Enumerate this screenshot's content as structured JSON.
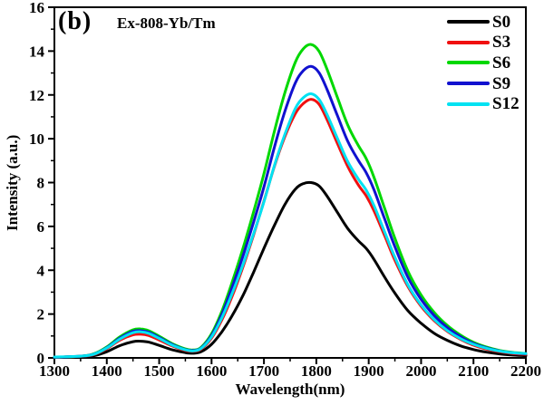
{
  "figure": {
    "panel_label": "(b)",
    "annotation": "Ex-808-Yb/Tm",
    "background": "#ffffff",
    "frame_color": "#000000"
  },
  "chart_data": {
    "type": "line",
    "title": "",
    "xlabel": "Wavelength(nm)",
    "ylabel": "Intensity (a.u.)",
    "xlim": [
      1300,
      2200
    ],
    "ylim": [
      0,
      16
    ],
    "x_major_ticks": [
      1300,
      1400,
      1500,
      1600,
      1700,
      1800,
      1900,
      2000,
      2100,
      2200
    ],
    "x_minor_tick_step": 50,
    "y_major_ticks": [
      0,
      2,
      4,
      6,
      8,
      10,
      12,
      14,
      16
    ],
    "y_minor_tick_step": 1,
    "grid": false,
    "legend_position": "top-right-inside",
    "x": [
      1300,
      1350,
      1375,
      1400,
      1425,
      1450,
      1465,
      1480,
      1500,
      1525,
      1550,
      1565,
      1580,
      1600,
      1620,
      1640,
      1660,
      1680,
      1700,
      1720,
      1740,
      1760,
      1775,
      1790,
      1805,
      1820,
      1840,
      1860,
      1880,
      1895,
      1910,
      1930,
      1950,
      1975,
      2000,
      2025,
      2050,
      2075,
      2100,
      2125,
      2150,
      2175,
      2200
    ],
    "series": [
      {
        "name": "S0",
        "color": "#000000",
        "values": [
          0.03,
          0.05,
          0.1,
          0.28,
          0.56,
          0.74,
          0.76,
          0.72,
          0.57,
          0.37,
          0.24,
          0.21,
          0.28,
          0.62,
          1.2,
          1.95,
          2.85,
          3.9,
          5.0,
          6.05,
          7.0,
          7.7,
          7.95,
          8.0,
          7.85,
          7.4,
          6.65,
          5.9,
          5.35,
          5.0,
          4.5,
          3.7,
          2.95,
          2.15,
          1.58,
          1.12,
          0.8,
          0.55,
          0.38,
          0.26,
          0.18,
          0.13,
          0.1
        ]
      },
      {
        "name": "S3",
        "color": "#f01010",
        "values": [
          0.03,
          0.07,
          0.15,
          0.42,
          0.81,
          1.05,
          1.08,
          1.02,
          0.82,
          0.54,
          0.34,
          0.3,
          0.4,
          0.9,
          1.75,
          2.85,
          4.15,
          5.6,
          7.15,
          8.75,
          10.1,
          11.15,
          11.6,
          11.8,
          11.58,
          10.9,
          9.8,
          8.73,
          7.9,
          7.4,
          6.72,
          5.6,
          4.45,
          3.25,
          2.36,
          1.7,
          1.21,
          0.85,
          0.58,
          0.4,
          0.28,
          0.2,
          0.16
        ]
      },
      {
        "name": "S6",
        "color": "#00d800",
        "values": [
          0.03,
          0.08,
          0.18,
          0.5,
          0.96,
          1.28,
          1.32,
          1.24,
          0.99,
          0.65,
          0.41,
          0.36,
          0.48,
          1.1,
          2.15,
          3.5,
          5.0,
          6.65,
          8.4,
          10.35,
          12.1,
          13.5,
          14.1,
          14.3,
          14.0,
          13.2,
          11.9,
          10.62,
          9.7,
          9.1,
          8.25,
          6.85,
          5.45,
          3.95,
          2.87,
          2.07,
          1.48,
          1.04,
          0.71,
          0.49,
          0.34,
          0.25,
          0.2
        ]
      },
      {
        "name": "S9",
        "color": "#1111cf",
        "values": [
          0.03,
          0.08,
          0.17,
          0.47,
          0.9,
          1.21,
          1.24,
          1.17,
          0.93,
          0.61,
          0.38,
          0.34,
          0.45,
          1.02,
          2.0,
          3.26,
          4.65,
          6.18,
          7.8,
          9.62,
          11.25,
          12.55,
          13.1,
          13.3,
          13.02,
          12.28,
          11.07,
          9.88,
          9.02,
          8.46,
          7.68,
          6.37,
          5.07,
          3.67,
          2.67,
          1.93,
          1.38,
          0.97,
          0.66,
          0.46,
          0.32,
          0.23,
          0.19
        ]
      },
      {
        "name": "S12",
        "color": "#00e2f2",
        "values": [
          0.04,
          0.08,
          0.16,
          0.45,
          0.86,
          1.15,
          1.19,
          1.12,
          0.89,
          0.58,
          0.37,
          0.32,
          0.43,
          0.96,
          1.85,
          2.98,
          4.25,
          5.65,
          7.12,
          8.78,
          10.2,
          11.38,
          11.87,
          12.05,
          11.8,
          11.13,
          10.03,
          8.95,
          8.17,
          7.66,
          6.96,
          5.77,
          4.59,
          3.33,
          2.42,
          1.75,
          1.25,
          0.88,
          0.62,
          0.44,
          0.31,
          0.23,
          0.2
        ]
      }
    ],
    "peaks_note": {
      "small_band_nm": 1455,
      "main_band_nm": 1790,
      "main_peak_values": {
        "S0": 8.0,
        "S3": 11.8,
        "S6": 14.3,
        "S9": 13.3,
        "S12": 12.05
      }
    }
  },
  "legend": {
    "items": [
      {
        "label": "S0",
        "color": "#000000"
      },
      {
        "label": "S3",
        "color": "#f01010"
      },
      {
        "label": "S6",
        "color": "#00d800"
      },
      {
        "label": "S9",
        "color": "#1111cf"
      },
      {
        "label": "S12",
        "color": "#00e2f2"
      }
    ]
  }
}
